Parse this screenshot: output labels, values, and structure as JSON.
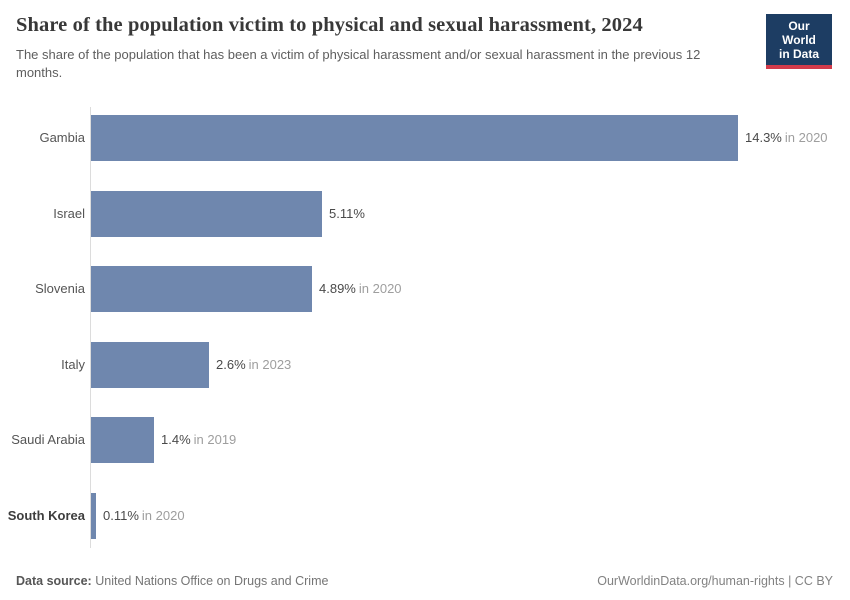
{
  "header": {
    "title": "Share of the population victim to physical and sexual harassment, 2024",
    "subtitle": "The share of the population that has been a victim of physical harassment and/or sexual harassment in the previous 12 months."
  },
  "logo": {
    "line1": "Our World",
    "line2": "in Data",
    "bg_color": "#1d3d63",
    "accent_color": "#d33b4b"
  },
  "chart_data": {
    "type": "bar",
    "orientation": "horizontal",
    "title": "Share of the population victim to physical and sexual harassment, 2024",
    "xlabel": "",
    "ylabel": "",
    "xlim": [
      0,
      14.3
    ],
    "grid": false,
    "legend": "none",
    "bar_color": "#6f87ae",
    "axis_color": "#dcdcdc",
    "categories": [
      "Gambia",
      "Israel",
      "Slovenia",
      "Italy",
      "Saudi Arabia",
      "South Korea"
    ],
    "values": [
      14.3,
      5.11,
      4.89,
      2.6,
      1.4,
      0.11
    ],
    "entities": [
      {
        "label": "Gambia",
        "value": 14.3,
        "value_label": "14.3%",
        "year_label": "in 2020",
        "emphasis": false
      },
      {
        "label": "Israel",
        "value": 5.11,
        "value_label": "5.11%",
        "year_label": "",
        "emphasis": false
      },
      {
        "label": "Slovenia",
        "value": 4.89,
        "value_label": "4.89%",
        "year_label": "in 2020",
        "emphasis": false
      },
      {
        "label": "Italy",
        "value": 2.6,
        "value_label": "2.6%",
        "year_label": "in 2023",
        "emphasis": false
      },
      {
        "label": "Saudi Arabia",
        "value": 1.4,
        "value_label": "1.4%",
        "year_label": "in 2019",
        "emphasis": false
      },
      {
        "label": "South Korea",
        "value": 0.11,
        "value_label": "0.11%",
        "year_label": "in 2020",
        "emphasis": true
      }
    ]
  },
  "footer": {
    "datasource_label": "Data source:",
    "datasource_value": "United Nations Office on Drugs and Crime",
    "link": "OurWorldinData.org/human-rights | CC BY"
  }
}
